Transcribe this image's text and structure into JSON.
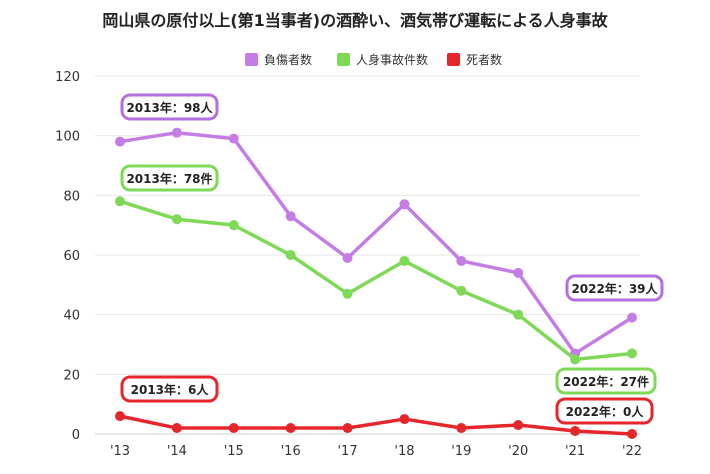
{
  "chart_data": {
    "type": "line",
    "title": "岡山県の原付以上(第1当事者)の酒酔い、酒気帯び運転による人身事故",
    "categories": [
      "'13",
      "'14",
      "'15",
      "'16",
      "'17",
      "'18",
      "'19",
      "'20",
      "'21",
      "'22"
    ],
    "ylim": [
      0,
      120
    ],
    "yticks": [
      0,
      20,
      40,
      60,
      80,
      100,
      120
    ],
    "grid": true,
    "legend": "top",
    "series": [
      {
        "name": "負傷者数",
        "color": "#c57de6",
        "values": [
          98,
          101,
          99,
          73,
          59,
          77,
          58,
          54,
          27,
          39
        ]
      },
      {
        "name": "人身事故件数",
        "color": "#7ed957",
        "values": [
          78,
          72,
          70,
          60,
          47,
          58,
          48,
          40,
          25,
          27
        ]
      },
      {
        "name": "死者数",
        "color": "#e5262b",
        "values": [
          6,
          2,
          2,
          2,
          2,
          5,
          2,
          3,
          1,
          0
        ]
      }
    ],
    "annotations": [
      {
        "text": "2013年：98人",
        "series": 0,
        "color": "#b66ee0"
      },
      {
        "text": "2013年：78件",
        "series": 1,
        "color": "#7ed957"
      },
      {
        "text": "2013年：6人",
        "series": 2,
        "color": "#e5262b"
      },
      {
        "text": "2022年：39人",
        "series": 0,
        "color": "#b66ee0"
      },
      {
        "text": "2022年：27件",
        "series": 1,
        "color": "#7ed957"
      },
      {
        "text": "2022年：0人",
        "series": 2,
        "color": "#e5262b"
      }
    ]
  }
}
